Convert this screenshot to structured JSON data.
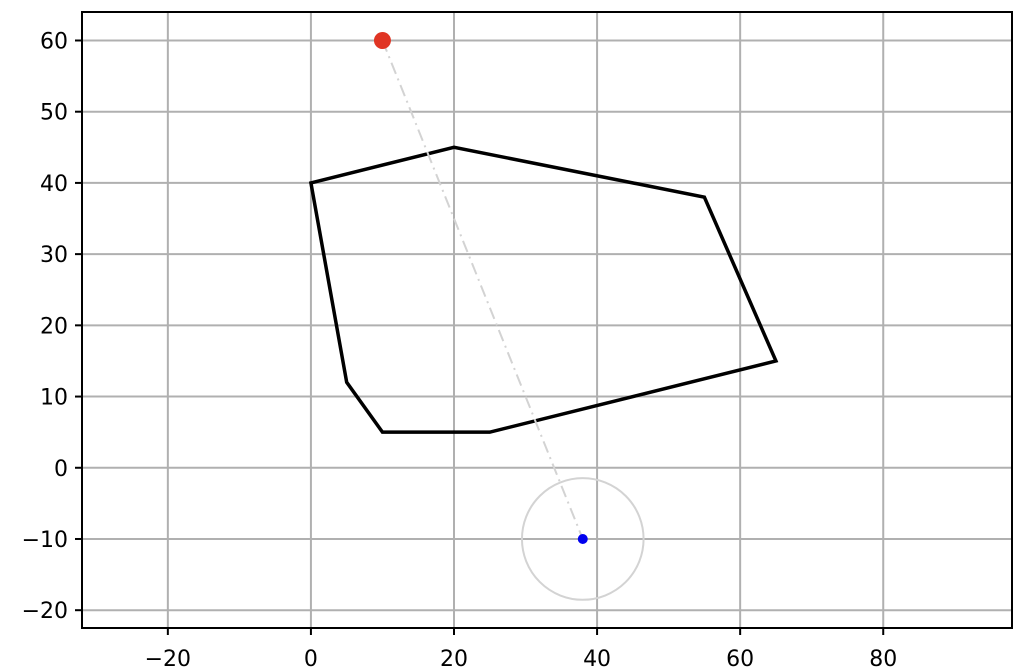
{
  "chart_data": {
    "type": "scatter",
    "title": "",
    "xlabel": "",
    "ylabel": "",
    "xlim": [
      -32,
      98
    ],
    "ylim": [
      -22.5,
      64
    ],
    "grid": true,
    "xticks": [
      {
        "value": -20,
        "label": "−20"
      },
      {
        "value": 0,
        "label": "0"
      },
      {
        "value": 20,
        "label": "20"
      },
      {
        "value": 40,
        "label": "40"
      },
      {
        "value": 60,
        "label": "60"
      },
      {
        "value": 80,
        "label": "80"
      }
    ],
    "yticks": [
      {
        "value": -20,
        "label": "−20"
      },
      {
        "value": -10,
        "label": "−10"
      },
      {
        "value": 0,
        "label": "0"
      },
      {
        "value": 10,
        "label": "10"
      },
      {
        "value": 20,
        "label": "20"
      },
      {
        "value": 30,
        "label": "30"
      },
      {
        "value": 40,
        "label": "40"
      },
      {
        "value": 50,
        "label": "50"
      },
      {
        "value": 60,
        "label": "60"
      }
    ],
    "polygon": {
      "points": [
        [
          0,
          40
        ],
        [
          20,
          45
        ],
        [
          55,
          38
        ],
        [
          65,
          15
        ],
        [
          25,
          5
        ],
        [
          10,
          5
        ],
        [
          5,
          12
        ]
      ],
      "color": "#000000"
    },
    "start_point": {
      "x": 10,
      "y": 60,
      "color": "#e03524"
    },
    "end_point": {
      "x": 38,
      "y": -10,
      "color": "#0000ee"
    },
    "connector": {
      "from": [
        10,
        60
      ],
      "to": [
        38,
        -10
      ],
      "color": "#d3d3d3",
      "style": "dashdot"
    },
    "circle": {
      "center": [
        38,
        -10
      ],
      "radius": 8.5,
      "color": "#d3d3d3"
    }
  }
}
